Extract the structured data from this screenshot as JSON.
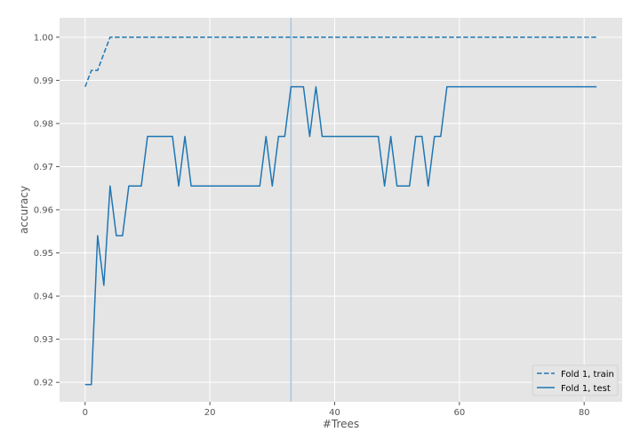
{
  "chart_data": {
    "type": "line",
    "xlabel": "#Trees",
    "ylabel": "accuracy",
    "xlim": [
      -4.1,
      86.1
    ],
    "ylim": [
      0.9155,
      1.0045
    ],
    "xticks": [
      0,
      20,
      40,
      60,
      80
    ],
    "yticks": [
      0.92,
      0.93,
      0.94,
      0.95,
      0.96,
      0.97,
      0.98,
      0.99,
      1.0
    ],
    "ytick_labels": [
      "0.92",
      "0.93",
      "0.94",
      "0.95",
      "0.96",
      "0.97",
      "0.98",
      "0.99",
      "1.00"
    ],
    "grid": true,
    "legend_position": "bottom-right",
    "vline_x": 33,
    "colors": {
      "line": "#1f77b4",
      "vline": "#a6c8e0",
      "plot_bg": "#e5e5e5",
      "grid": "#ffffff"
    },
    "series": [
      {
        "name": "Fold 1, train",
        "style": "dashed",
        "x": [
          0,
          1,
          2,
          3,
          4,
          82
        ],
        "y": [
          0.9885,
          0.9923,
          0.9923,
          0.9962,
          1.0,
          1.0
        ]
      },
      {
        "name": "Fold 1, test",
        "style": "solid",
        "x": [
          0,
          1,
          2,
          3,
          4,
          5,
          6,
          7,
          8,
          9,
          10,
          11,
          12,
          13,
          14,
          15,
          16,
          17,
          18,
          19,
          20,
          21,
          22,
          23,
          24,
          25,
          26,
          27,
          28,
          29,
          30,
          31,
          32,
          33,
          34,
          35,
          36,
          37,
          38,
          39,
          40,
          41,
          42,
          43,
          44,
          45,
          46,
          47,
          48,
          49,
          50,
          51,
          52,
          53,
          54,
          55,
          56,
          57,
          58,
          82
        ],
        "y": [
          0.9195,
          0.9195,
          0.954,
          0.9425,
          0.9655,
          0.954,
          0.954,
          0.9655,
          0.9655,
          0.9655,
          0.977,
          0.977,
          0.977,
          0.977,
          0.977,
          0.9655,
          0.977,
          0.9655,
          0.9655,
          0.9655,
          0.9655,
          0.9655,
          0.9655,
          0.9655,
          0.9655,
          0.9655,
          0.9655,
          0.9655,
          0.9655,
          0.977,
          0.9655,
          0.977,
          0.977,
          0.9885,
          0.9885,
          0.9885,
          0.977,
          0.9885,
          0.977,
          0.977,
          0.977,
          0.977,
          0.977,
          0.977,
          0.977,
          0.977,
          0.977,
          0.977,
          0.9655,
          0.977,
          0.9655,
          0.9655,
          0.9655,
          0.977,
          0.977,
          0.9655,
          0.977,
          0.977,
          0.9885,
          0.9885
        ]
      }
    ]
  }
}
